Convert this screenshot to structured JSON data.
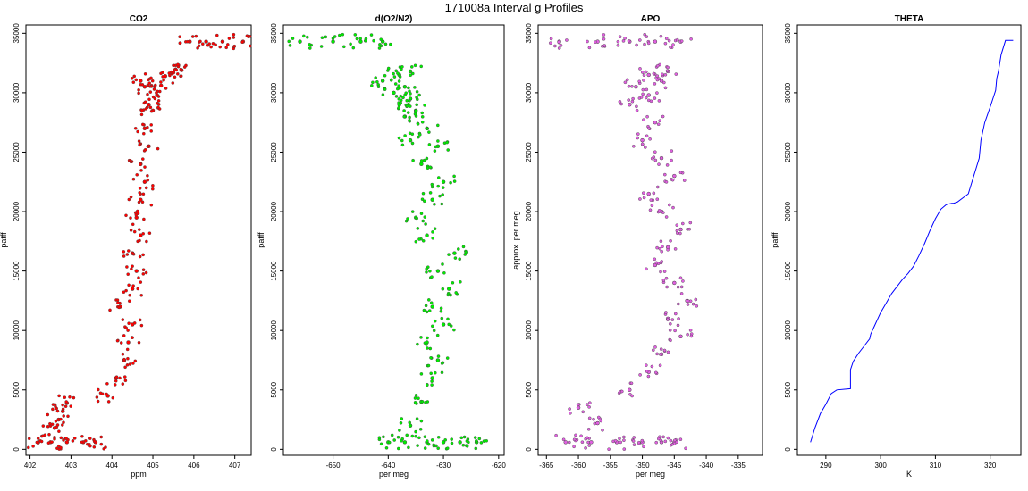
{
  "figure": {
    "title": "171008a   Interval g Profiles"
  },
  "chart_data": [
    {
      "type": "scatter",
      "title": "CO2",
      "xlabel": "ppm",
      "ylabel": "patff",
      "xlim": [
        401.9,
        407.4
      ],
      "ylim": [
        -500,
        35700
      ],
      "xticks": [
        402,
        403,
        404,
        405,
        406,
        407
      ],
      "yticks": [
        0,
        5000,
        10000,
        15000,
        20000,
        25000,
        30000,
        35000
      ],
      "color": "#ff0000",
      "series": [
        {
          "x": [
            402.2,
            402.5,
            402.9,
            403.3,
            403.6,
            402.6,
            402.7,
            402.8,
            402.9,
            403.9,
            404.1,
            404.3,
            404.4,
            404.5,
            404.2,
            404.5,
            404.6,
            404.5,
            404.7,
            404.6,
            404.7,
            404.8,
            404.7,
            404.9,
            404.8,
            405.0,
            404.9,
            405.1,
            404.8,
            405.2,
            404.7,
            405.3,
            405.5,
            405.7,
            405.9,
            406.3,
            406.7,
            407.2
          ],
          "y": [
            600,
            600,
            600,
            600,
            600,
            1800,
            2500,
            3200,
            3900,
            4500,
            6000,
            7500,
            9000,
            10500,
            12000,
            13500,
            15000,
            16500,
            18000,
            19500,
            21000,
            22500,
            24000,
            25500,
            27000,
            28500,
            29000,
            29800,
            30500,
            30600,
            31000,
            31400,
            31700,
            31900,
            34300,
            34300,
            34300,
            34300
          ]
        }
      ]
    },
    {
      "type": "scatter",
      "title": "d(O2/N2)",
      "xlabel": "per meg",
      "ylabel": "patff",
      "xlim": [
        -659,
        -619
      ],
      "ylim": [
        -500,
        35700
      ],
      "xticks": [
        -650,
        -640,
        -630,
        -620
      ],
      "yticks": [
        0,
        5000,
        10000,
        15000,
        20000,
        25000,
        30000,
        35000
      ],
      "color": "#00ee00",
      "series": [
        {
          "x": [
            -640,
            -637,
            -633,
            -630,
            -627,
            -624,
            -636,
            -634,
            -632,
            -631,
            -633,
            -630,
            -632,
            -629,
            -631,
            -628,
            -633,
            -635,
            -632,
            -630,
            -634,
            -631,
            -636,
            -633,
            -637,
            -635,
            -638,
            -636,
            -639,
            -637,
            -641,
            -638,
            -636,
            -656,
            -650,
            -645,
            -641
          ],
          "y": [
            600,
            600,
            600,
            600,
            600,
            600,
            2000,
            4000,
            6000,
            7500,
            9000,
            10500,
            12000,
            13500,
            15000,
            16500,
            18000,
            19500,
            21000,
            22500,
            24000,
            25500,
            26000,
            27000,
            28000,
            28500,
            29000,
            29500,
            30000,
            30500,
            31000,
            31500,
            31800,
            34300,
            34300,
            34300,
            34300
          ]
        }
      ]
    },
    {
      "type": "scatter",
      "title": "APO",
      "xlabel": "per meg",
      "ylabel": "approx. per meg",
      "xlim": [
        -366.3,
        -331.2
      ],
      "ylim": [
        -500,
        35700
      ],
      "xticks": [
        -365,
        -360,
        -355,
        -350,
        -345,
        -340,
        -335
      ],
      "yticks": [
        0,
        5000,
        10000,
        15000,
        20000,
        25000,
        30000,
        35000
      ],
      "color": "#e060e0",
      "series": [
        {
          "x": [
            -362,
            -358,
            -354,
            -350,
            -347,
            -345,
            -360,
            -357,
            -352,
            -349,
            -347,
            -344,
            -346,
            -343,
            -345,
            -348,
            -346,
            -344,
            -347,
            -349,
            -345,
            -347,
            -350,
            -348,
            -352,
            -349,
            -351,
            -347,
            -349,
            -346,
            -363,
            -357,
            -352,
            -348,
            -344
          ],
          "y": [
            600,
            600,
            600,
            600,
            600,
            600,
            3500,
            2200,
            5000,
            6500,
            8000,
            9500,
            11000,
            12500,
            14000,
            15500,
            17000,
            18500,
            20000,
            21500,
            23000,
            24500,
            26000,
            27500,
            29000,
            29800,
            30500,
            31000,
            31500,
            31800,
            34300,
            34300,
            34300,
            34300,
            34300
          ]
        }
      ]
    },
    {
      "type": "line",
      "title": "THETA",
      "xlabel": "K",
      "ylabel": "patff",
      "xlim": [
        284.8,
        325.6
      ],
      "ylim": [
        -500,
        35700
      ],
      "xticks": [
        290,
        300,
        310,
        320
      ],
      "yticks": [
        0,
        5000,
        10000,
        15000,
        20000,
        25000,
        30000,
        35000
      ],
      "color": "#0000ff",
      "series": [
        {
          "x": [
            287.2,
            288,
            289,
            290,
            291,
            292,
            294.5,
            294.5,
            295,
            296,
            297,
            298,
            298.2,
            299,
            300,
            301,
            302,
            303,
            304,
            305,
            306,
            307,
            308,
            309,
            310,
            311,
            312,
            313,
            313.3,
            314,
            316,
            318,
            318.3,
            319,
            320,
            321,
            321.2,
            321.5,
            322,
            322.8,
            324.2
          ],
          "y": [
            600,
            1800,
            3000,
            3800,
            4700,
            5000,
            5100,
            6700,
            7400,
            8100,
            8700,
            9300,
            9700,
            10500,
            11500,
            12300,
            13100,
            13700,
            14300,
            14800,
            15400,
            16300,
            17300,
            18400,
            19400,
            20200,
            20600,
            20700,
            20700,
            20800,
            21500,
            24500,
            26000,
            27500,
            28800,
            30200,
            31200,
            31800,
            33200,
            34400,
            34400
          ]
        }
      ]
    }
  ]
}
